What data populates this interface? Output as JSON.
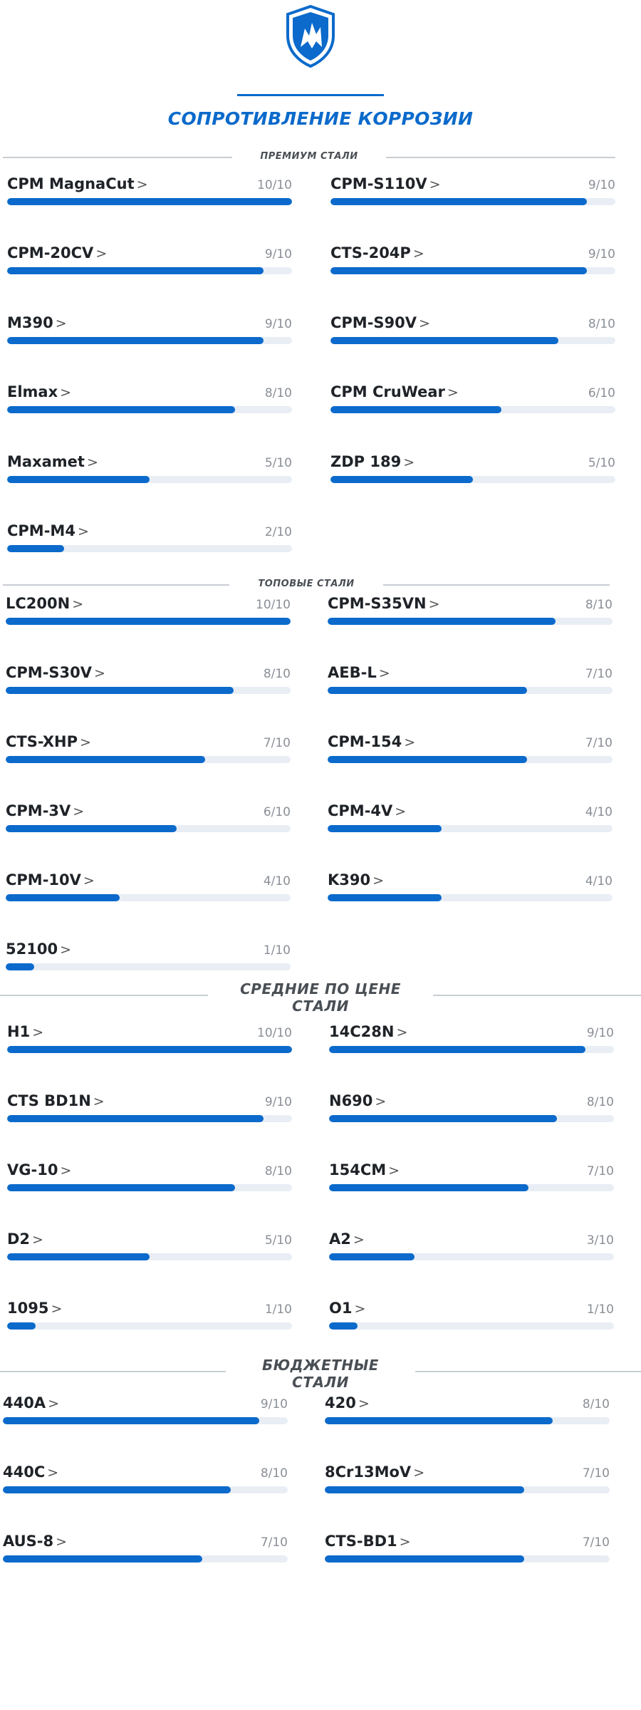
{
  "title": "СОПРОТИВЛЕНИЕ КОРРОЗИИ",
  "colors": {
    "accent": "#0b6acb",
    "track": "#e9eef5",
    "divider": "#c9cdd2"
  },
  "logo": {
    "icon": "shield-logo-icon"
  },
  "sections": [
    {
      "id": "premium",
      "label_lines": [
        "ПРЕМИУМ СТАЛИ"
      ],
      "items": [
        {
          "name": "CPM MagnaCut",
          "rating": "10/10",
          "value": 10
        },
        {
          "name": "CPM-S110V",
          "rating": "9/10",
          "value": 9
        },
        {
          "name": "CPM-20CV",
          "rating": "9/10",
          "value": 9
        },
        {
          "name": "CTS-204P",
          "rating": "9/10",
          "value": 9
        },
        {
          "name": "M390",
          "rating": "9/10",
          "value": 9
        },
        {
          "name": "CPM-S90V",
          "rating": "8/10",
          "value": 8
        },
        {
          "name": "Elmax",
          "rating": "8/10",
          "value": 8
        },
        {
          "name": "CPM CruWear",
          "rating": "6/10",
          "value": 6
        },
        {
          "name": "Maxamet",
          "rating": "5/10",
          "value": 5
        },
        {
          "name": "ZDP 189",
          "rating": "5/10",
          "value": 5
        },
        {
          "name": "CPM-M4",
          "rating": "2/10",
          "value": 2
        }
      ]
    },
    {
      "id": "top",
      "label_lines": [
        "ТОПОВЫЕ СТАЛИ"
      ],
      "items": [
        {
          "name": "LC200N",
          "rating": "10/10",
          "value": 10
        },
        {
          "name": "CPM-S35VN",
          "rating": "8/10",
          "value": 8
        },
        {
          "name": "CPM-S30V",
          "rating": "8/10",
          "value": 8
        },
        {
          "name": "AEB-L",
          "rating": "7/10",
          "value": 7
        },
        {
          "name": "CTS-XHP",
          "rating": "7/10",
          "value": 7
        },
        {
          "name": "CPM-154",
          "rating": "7/10",
          "value": 7
        },
        {
          "name": "CPM-3V",
          "rating": "6/10",
          "value": 6
        },
        {
          "name": "CPM-4V",
          "rating": "4/10",
          "value": 4
        },
        {
          "name": "CPM-10V",
          "rating": "4/10",
          "value": 4
        },
        {
          "name": "K390",
          "rating": "4/10",
          "value": 4
        },
        {
          "name": "52100",
          "rating": "1/10",
          "value": 1
        }
      ]
    },
    {
      "id": "mid",
      "label_lines": [
        "СРЕДНИЕ ПО ЦЕНЕ",
        "СТАЛИ"
      ],
      "items": [
        {
          "name": "H1",
          "rating": "10/10",
          "value": 10
        },
        {
          "name": "14C28N",
          "rating": "9/10",
          "value": 9
        },
        {
          "name": "CTS BD1N",
          "rating": "9/10",
          "value": 9
        },
        {
          "name": "N690",
          "rating": "8/10",
          "value": 8
        },
        {
          "name": "VG-10",
          "rating": "8/10",
          "value": 8
        },
        {
          "name": "154CM",
          "rating": "7/10",
          "value": 7
        },
        {
          "name": "D2",
          "rating": "5/10",
          "value": 5
        },
        {
          "name": "A2",
          "rating": "3/10",
          "value": 3
        },
        {
          "name": "1095",
          "rating": "1/10",
          "value": 1
        },
        {
          "name": "O1",
          "rating": "1/10",
          "value": 1
        }
      ]
    },
    {
      "id": "budget",
      "label_lines": [
        "БЮДЖЕТНЫЕ",
        "СТАЛИ"
      ],
      "items": [
        {
          "name": "440A",
          "rating": "9/10",
          "value": 9
        },
        {
          "name": "420",
          "rating": "8/10",
          "value": 8
        },
        {
          "name": "440C",
          "rating": "8/10",
          "value": 8
        },
        {
          "name": "8Cr13MoV",
          "rating": "7/10",
          "value": 7
        },
        {
          "name": "AUS-8",
          "rating": "7/10",
          "value": 7
        },
        {
          "name": "CTS-BD1",
          "rating": "7/10",
          "value": 7
        }
      ]
    }
  ]
}
